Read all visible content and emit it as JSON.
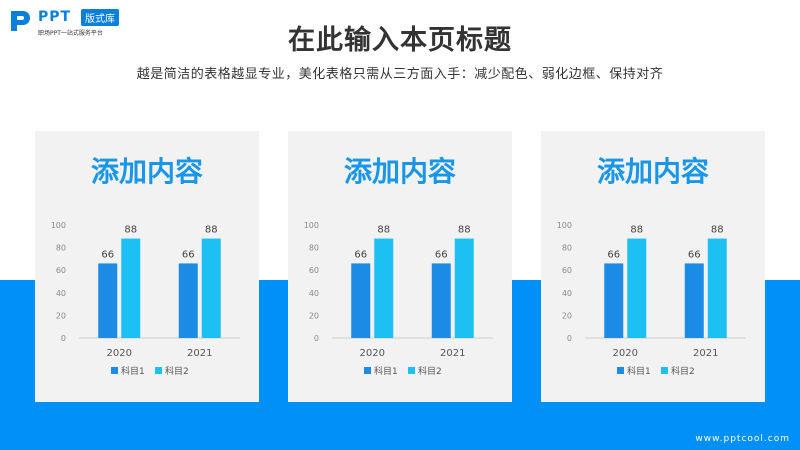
{
  "logo": {
    "main": "PPT",
    "badge": "版式库",
    "sub": "职场PPT一站式服务平台"
  },
  "title": "在此输入本页标题",
  "subtitle": "越是简洁的表格越显专业，美化表格只需从三方面入手：减少配色、弱化边框、保持对齐",
  "footer": {
    "url": "www.pptcool.com"
  },
  "colors": {
    "accent": "#0090f8",
    "series1": "#1b8be6",
    "series2": "#1cc0f3",
    "card_bg": "#f2f2f2"
  },
  "cards": [
    {
      "title": "添加内容"
    },
    {
      "title": "添加内容"
    },
    {
      "title": "添加内容"
    }
  ],
  "chart_data": [
    {
      "type": "bar",
      "categories": [
        "2020",
        "2021"
      ],
      "series": [
        {
          "name": "科目1",
          "values": [
            66,
            66
          ]
        },
        {
          "name": "科目2",
          "values": [
            88,
            88
          ]
        }
      ],
      "yticks": [
        "0",
        "20",
        "40",
        "60",
        "80",
        "100"
      ],
      "ylim": [
        0,
        100
      ],
      "legend": "bottom"
    },
    {
      "type": "bar",
      "categories": [
        "2020",
        "2021"
      ],
      "series": [
        {
          "name": "科目1",
          "values": [
            66,
            66
          ]
        },
        {
          "name": "科目2",
          "values": [
            88,
            88
          ]
        }
      ],
      "yticks": [
        "0",
        "20",
        "40",
        "60",
        "80",
        "100"
      ],
      "ylim": [
        0,
        100
      ],
      "legend": "bottom"
    },
    {
      "type": "bar",
      "categories": [
        "2020",
        "2021"
      ],
      "series": [
        {
          "name": "科目1",
          "values": [
            66,
            66
          ]
        },
        {
          "name": "科目2",
          "values": [
            88,
            88
          ]
        }
      ],
      "yticks": [
        "0",
        "20",
        "40",
        "60",
        "80",
        "100"
      ],
      "ylim": [
        0,
        100
      ],
      "legend": "bottom"
    }
  ]
}
